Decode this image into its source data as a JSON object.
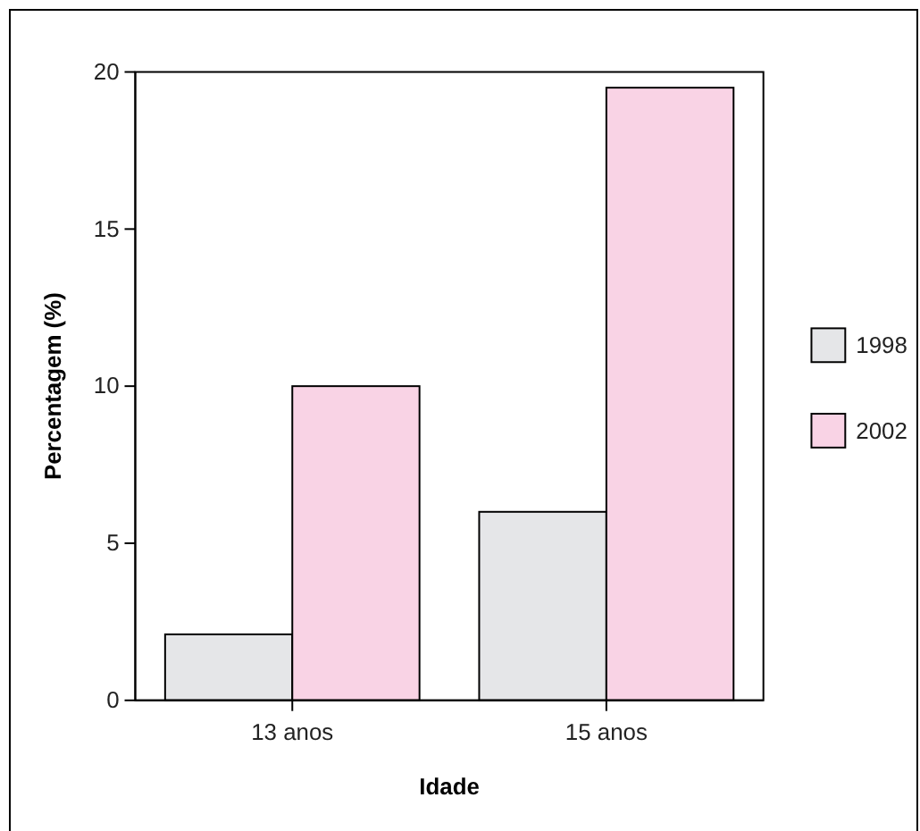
{
  "chart_data": {
    "type": "bar",
    "xlabel": "Idade",
    "ylabel": "Percentagem (%)",
    "categories": [
      "13 anos",
      "15 anos"
    ],
    "series": [
      {
        "name": "1998",
        "color": "#e5e6e8",
        "values": [
          2.1,
          6.0
        ]
      },
      {
        "name": "2002",
        "color": "#f9d3e5",
        "values": [
          10.0,
          19.5
        ]
      }
    ],
    "ylim": [
      0,
      20
    ],
    "yticks": [
      0,
      5,
      10,
      15,
      20
    ],
    "grid": false,
    "legend": "right"
  }
}
